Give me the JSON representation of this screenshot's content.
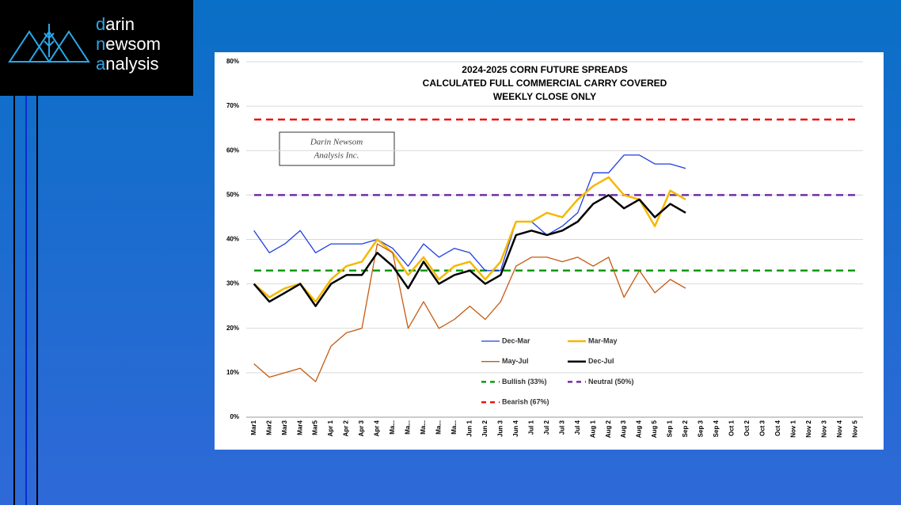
{
  "logo": {
    "lines": [
      "darin",
      "newsom",
      "analysis"
    ]
  },
  "chart_data": {
    "type": "line",
    "title": [
      "2024-2025 CORN FUTURE SPREADS",
      "CALCULATED FULL COMMERCIAL CARRY COVERED",
      "WEEKLY CLOSE ONLY"
    ],
    "annotation": [
      "Darin Newsom",
      "Analysis Inc."
    ],
    "categories": [
      "Mar1",
      "Mar2",
      "Mar3",
      "Mar4",
      "Mar5",
      "Apr 1",
      "Apr 2",
      "Apr 3",
      "Apr 4",
      "Ma...",
      "Ma...",
      "Ma...",
      "Ma...",
      "Ma...",
      "Jun 1",
      "Jun 2",
      "Jun 3",
      "Jun 4",
      "Jul 1",
      "Jul 2",
      "Jul 3",
      "Jul 4",
      "Aug 1",
      "Aug 2",
      "Aug 3",
      "Aug 4",
      "Aug 5",
      "Sep 1",
      "Sep 2",
      "Sep 3",
      "Sep 4",
      "Oct 1",
      "Oct 2",
      "Oct 3",
      "Oct 4",
      "Nov 1",
      "Nov 2",
      "Nov 3",
      "Nov 4",
      "Nov 5"
    ],
    "series": [
      {
        "name": "Dec-Mar",
        "color": "#1f3fe0",
        "width": 1.3,
        "values": [
          42,
          37,
          39,
          42,
          37,
          39,
          39,
          39,
          40,
          38,
          34,
          39,
          36,
          38,
          37,
          33,
          33,
          44,
          44,
          41,
          43,
          46,
          55,
          55,
          59,
          59,
          57,
          57,
          56,
          null,
          null,
          null,
          null,
          null,
          null,
          null,
          null,
          null,
          null,
          null
        ]
      },
      {
        "name": "Mar-May",
        "color": "#f5b800",
        "width": 2.5,
        "values": [
          30,
          27,
          29,
          30,
          26,
          31,
          34,
          35,
          40,
          37,
          32,
          36,
          31,
          34,
          35,
          31,
          35,
          44,
          44,
          46,
          45,
          49,
          52,
          54,
          50,
          49,
          43,
          51,
          49,
          null,
          null,
          null,
          null,
          null,
          null,
          null,
          null,
          null,
          null,
          null
        ]
      },
      {
        "name": "May-Jul",
        "color": "#c55a11",
        "width": 1.3,
        "values": [
          12,
          9,
          10,
          11,
          8,
          16,
          19,
          20,
          39,
          37,
          20,
          26,
          20,
          22,
          25,
          22,
          26,
          34,
          36,
          36,
          35,
          36,
          34,
          36,
          27,
          33,
          28,
          31,
          29,
          null,
          null,
          null,
          null,
          null,
          null,
          null,
          null,
          null,
          null,
          null
        ]
      },
      {
        "name": "Dec-Jul",
        "color": "#000000",
        "width": 2.5,
        "values": [
          30,
          26,
          28,
          30,
          25,
          30,
          32,
          32,
          37,
          34,
          29,
          35,
          30,
          32,
          33,
          30,
          32,
          41,
          42,
          41,
          42,
          44,
          48,
          50,
          47,
          49,
          45,
          48,
          46,
          null,
          null,
          null,
          null,
          null,
          null,
          null,
          null,
          null,
          null,
          null
        ]
      }
    ],
    "reference_lines": [
      {
        "name": "Bullish (33%)",
        "color": "#119911",
        "value": 33
      },
      {
        "name": "Neutral (50%)",
        "color": "#7030a0",
        "value": 50
      },
      {
        "name": "Bearish (67%)",
        "color": "#ee1111",
        "value": 67
      }
    ],
    "ylim": [
      0,
      80
    ],
    "yticks": [
      {
        "value": 0,
        "label": "0%"
      },
      {
        "value": 10,
        "label": "10%"
      },
      {
        "value": 20,
        "label": "20%"
      },
      {
        "value": 30,
        "label": "30%"
      },
      {
        "value": 40,
        "label": "40%"
      },
      {
        "value": 50,
        "label": "50%"
      },
      {
        "value": 60,
        "label": "60%"
      },
      {
        "value": 70,
        "label": "70%"
      },
      {
        "value": 80,
        "label": "80%"
      }
    ],
    "grid": true
  }
}
